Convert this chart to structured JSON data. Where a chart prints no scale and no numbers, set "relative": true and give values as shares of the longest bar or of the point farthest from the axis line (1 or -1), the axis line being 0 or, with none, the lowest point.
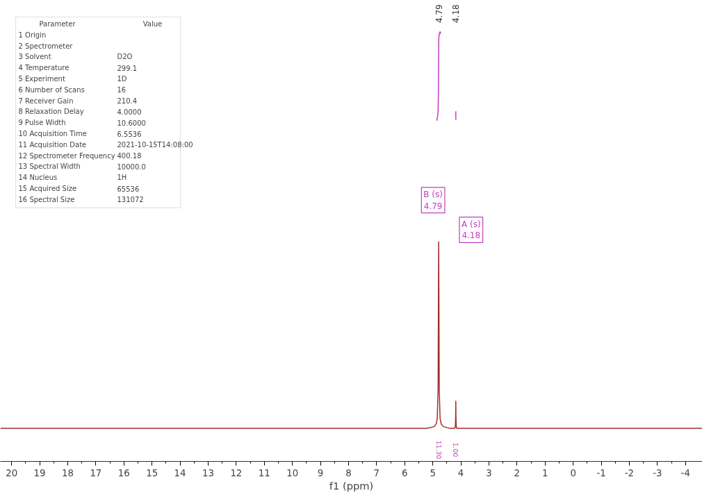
{
  "chart_data": [
    {
      "type": "line",
      "relative": true,
      "xlabel": "f1 (ppm)",
      "xlim": [
        20.4,
        -4.6
      ],
      "xticks": [
        20,
        19,
        18,
        17,
        16,
        15,
        14,
        13,
        12,
        11,
        10,
        9,
        8,
        7,
        6,
        5,
        4,
        3,
        2,
        1,
        0,
        -1,
        -2,
        -3,
        -4
      ],
      "tick_labels": "x",
      "series": [
        {
          "color": "#a52a2a",
          "x": [
            20.4,
            5.2,
            4.95,
            4.88,
            4.84,
            4.81,
            4.8,
            4.79,
            4.78,
            4.77,
            4.74,
            4.7,
            4.62,
            4.4,
            4.22,
            4.195,
            4.185,
            4.18,
            4.175,
            4.165,
            4.14,
            -4.6
          ],
          "values": [
            0.077,
            0.077,
            0.081,
            0.087,
            0.1,
            0.17,
            0.354,
            0.511,
            0.354,
            0.17,
            0.1,
            0.087,
            0.081,
            0.077,
            0.077,
            0.081,
            0.105,
            0.14,
            0.105,
            0.081,
            0.077,
            0.077
          ]
        },
        {
          "color": "#c040c0",
          "x": [
            4.86,
            4.83,
            4.81,
            4.8,
            4.79,
            4.785,
            4.77,
            4.74,
            4.72,
            null,
            4.18,
            4.18
          ],
          "values": [
            0.793,
            0.802,
            0.816,
            0.862,
            0.954,
            0.986,
            0.995,
            1.0,
            0.995,
            null,
            0.795,
            0.815
          ]
        }
      ],
      "annotations": [
        "B (s)\n4.79",
        "A (s)\n4.18",
        "4.79",
        "4.18",
        "11.30",
        "1.00"
      ]
    },
    {
      "type": "other",
      "categories": [
        "Parameter",
        "1 Origin",
        "2 Spectrometer",
        "3 Solvent",
        "4 Temperature",
        "5 Experiment",
        "6 Number of Scans",
        "7 Receiver Gain",
        "8 Relaxation Delay",
        "9 Pulse Width",
        "10 Acquisition Time",
        "11 Acquisition Date",
        "12 Spectrometer Frequency",
        "13 Spectral Width",
        "14 Nucleus",
        "15 Acquired Size",
        "16 Spectral Size"
      ],
      "annotations": [
        "Value",
        null,
        null,
        "D2O",
        "299.1",
        "1D",
        "16",
        "210.4",
        "4.0000",
        "10.6000",
        "6.5536",
        "2021-10-15T14:08:00",
        "400.18",
        "10000.0",
        "1H",
        "65536",
        "131072"
      ]
    }
  ]
}
